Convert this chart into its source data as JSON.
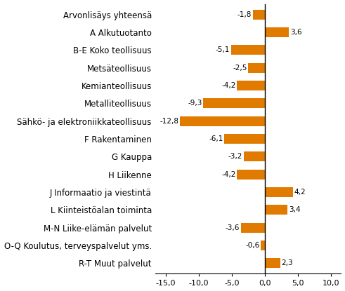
{
  "categories": [
    "Arvonlisäys yhteensä",
    "A Alkutuotanto",
    "B-E Koko teollisuus",
    "Metsäteollisuus",
    "Kemianteollisuus",
    "Metalliteollisuus",
    "Sähkö- ja elektroniikkateollisuus",
    "F Rakentaminen",
    "G Kauppa",
    "H Liikenne",
    "J Informaatio ja viestintä",
    "L Kiinteistöalan toiminta",
    "M-N Liike-elämän palvelut",
    "O-Q Koulutus, terveyspalvelut yms.",
    "R-T Muut palvelut"
  ],
  "values": [
    -1.8,
    3.6,
    -5.1,
    -2.5,
    -4.2,
    -9.3,
    -12.8,
    -6.1,
    -3.2,
    -4.2,
    4.2,
    3.4,
    -3.6,
    -0.6,
    2.3
  ],
  "bar_color": "#E07B00",
  "xlim": [
    -16.5,
    11.5
  ],
  "xticks": [
    -15,
    -10,
    -5,
    0,
    5,
    10
  ],
  "xtick_labels": [
    "-15,0",
    "-10,0",
    "-5,0",
    "0,0",
    "5,0",
    "10,0"
  ],
  "value_label_fontsize": 7.5,
  "label_fontsize": 8.5,
  "tick_fontsize": 8,
  "background_color": "#ffffff"
}
